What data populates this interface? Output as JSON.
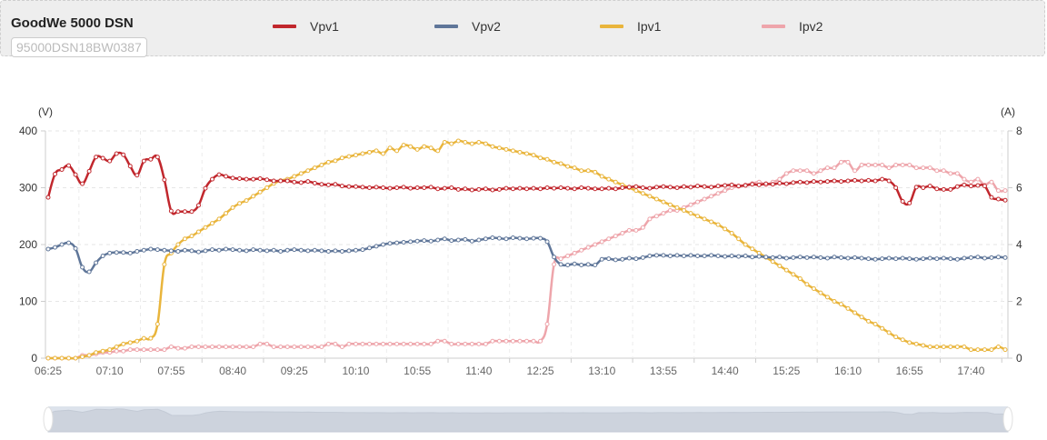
{
  "header": {
    "title": "GoodWe 5000 DSN",
    "serial": "95000DSN18BW0387"
  },
  "chart_data": {
    "type": "line",
    "title": "",
    "x_start": "06:25",
    "x_step_minutes": 5,
    "x_tick_labels": [
      "06:25",
      "07:10",
      "07:55",
      "08:40",
      "09:25",
      "10:10",
      "10:55",
      "11:40",
      "12:25",
      "13:10",
      "13:55",
      "14:40",
      "15:25",
      "16:10",
      "16:55",
      "17:40"
    ],
    "y_left": {
      "label": "(V)",
      "min": 0,
      "max": 400,
      "ticks": [
        "0",
        "100",
        "200",
        "300",
        "400"
      ]
    },
    "y_right": {
      "label": "(A)",
      "min": 0,
      "max": 8,
      "ticks": [
        "0",
        "2",
        "4",
        "6",
        "8"
      ]
    },
    "legend_position": "top",
    "series": [
      {
        "name": "Vpv1",
        "axis": "left",
        "color": "#c1272d",
        "values": [
          283,
          324,
          332,
          339,
          323,
          307,
          329,
          354,
          352,
          347,
          360,
          358,
          338,
          322,
          347,
          350,
          354,
          314,
          259,
          258,
          258,
          258,
          269,
          299,
          315,
          323,
          320,
          317,
          316,
          315,
          315,
          316,
          314,
          312,
          312,
          312,
          310,
          309,
          311,
          308,
          306,
          305,
          306,
          303,
          302,
          302,
          301,
          300,
          301,
          300,
          299,
          300,
          301,
          299,
          300,
          300,
          301,
          298,
          299,
          300,
          297,
          298,
          296,
          297,
          298,
          296,
          297,
          299,
          298,
          299,
          298,
          299,
          298,
          300,
          299,
          300,
          299,
          298,
          300,
          299,
          298,
          298,
          299,
          298,
          300,
          301,
          302,
          300,
          299,
          301,
          302,
          301,
          300,
          302,
          301,
          303,
          302,
          301,
          303,
          304,
          305,
          303,
          304,
          306,
          305,
          307,
          306,
          308,
          307,
          309,
          310,
          309,
          311,
          310,
          311,
          312,
          311,
          312,
          313,
          312,
          313,
          312,
          315,
          312,
          300,
          276,
          273,
          301,
          300,
          303,
          298,
          297,
          297,
          302,
          305,
          303,
          304,
          303,
          283,
          280,
          278
        ]
      },
      {
        "name": "Vpv2",
        "axis": "left",
        "color": "#5f7699",
        "values": [
          192,
          195,
          200,
          203,
          193,
          160,
          152,
          168,
          180,
          185,
          186,
          186,
          185,
          188,
          190,
          192,
          191,
          190,
          189,
          188,
          190,
          189,
          187,
          189,
          191,
          190,
          192,
          191,
          190,
          189,
          191,
          190,
          189,
          190,
          188,
          190,
          191,
          190,
          189,
          190,
          189,
          188,
          189,
          188,
          189,
          190,
          191,
          194,
          197,
          200,
          202,
          203,
          204,
          205,
          206,
          207,
          206,
          208,
          210,
          207,
          208,
          209,
          206,
          208,
          210,
          212,
          211,
          210,
          212,
          211,
          210,
          211,
          211,
          205,
          178,
          165,
          164,
          166,
          164,
          165,
          164,
          174,
          175,
          173,
          174,
          176,
          175,
          177,
          180,
          181,
          181,
          180,
          181,
          180,
          181,
          180,
          180,
          181,
          180,
          179,
          180,
          179,
          180,
          178,
          179,
          178,
          177,
          178,
          176,
          177,
          178,
          177,
          178,
          177,
          176,
          178,
          177,
          176,
          177,
          176,
          175,
          174,
          175,
          176,
          175,
          176,
          175,
          174,
          175,
          176,
          175,
          176,
          175,
          174,
          176,
          177,
          178,
          176,
          177,
          178,
          177
        ]
      },
      {
        "name": "Ipv1",
        "axis": "right",
        "color": "#e9b53c",
        "values": [
          0,
          0,
          0,
          0,
          0,
          0.05,
          0.1,
          0.2,
          0.25,
          0.3,
          0.4,
          0.5,
          0.55,
          0.6,
          0.7,
          0.7,
          1.2,
          3.3,
          3.7,
          4.0,
          4.2,
          4.3,
          4.45,
          4.6,
          4.75,
          4.9,
          5.1,
          5.3,
          5.45,
          5.55,
          5.7,
          5.85,
          6.0,
          6.15,
          6.25,
          6.3,
          6.4,
          6.5,
          6.6,
          6.7,
          6.8,
          6.9,
          6.95,
          7.05,
          7.1,
          7.15,
          7.2,
          7.25,
          7.3,
          7.2,
          7.4,
          7.3,
          7.5,
          7.45,
          7.35,
          7.45,
          7.4,
          7.3,
          7.6,
          7.55,
          7.65,
          7.6,
          7.55,
          7.6,
          7.55,
          7.45,
          7.4,
          7.35,
          7.3,
          7.25,
          7.2,
          7.15,
          7.05,
          7.0,
          6.9,
          6.85,
          6.75,
          6.7,
          6.6,
          6.6,
          6.55,
          6.4,
          6.3,
          6.2,
          6.1,
          6.0,
          5.9,
          5.8,
          5.7,
          5.6,
          5.5,
          5.4,
          5.3,
          5.2,
          5.1,
          5.0,
          4.9,
          4.8,
          4.7,
          4.55,
          4.4,
          4.2,
          4.0,
          3.85,
          3.7,
          3.55,
          3.4,
          3.25,
          3.1,
          2.95,
          2.8,
          2.6,
          2.45,
          2.3,
          2.15,
          2.0,
          1.9,
          1.75,
          1.6,
          1.45,
          1.3,
          1.2,
          1.05,
          0.9,
          0.75,
          0.65,
          0.55,
          0.5,
          0.45,
          0.4,
          0.4,
          0.4,
          0.4,
          0.4,
          0.4,
          0.3,
          0.3,
          0.3,
          0.3,
          0.4,
          0.3
        ]
      },
      {
        "name": "Ipv2",
        "axis": "right",
        "color": "#eea5ab",
        "values": [
          0,
          0,
          0,
          0,
          0,
          0.1,
          0.1,
          0.15,
          0.2,
          0.2,
          0.25,
          0.25,
          0.3,
          0.3,
          0.3,
          0.3,
          0.3,
          0.3,
          0.4,
          0.35,
          0.35,
          0.4,
          0.4,
          0.4,
          0.4,
          0.4,
          0.4,
          0.4,
          0.4,
          0.4,
          0.4,
          0.5,
          0.5,
          0.4,
          0.4,
          0.4,
          0.4,
          0.4,
          0.4,
          0.4,
          0.4,
          0.5,
          0.5,
          0.4,
          0.5,
          0.5,
          0.5,
          0.5,
          0.5,
          0.5,
          0.5,
          0.5,
          0.5,
          0.5,
          0.5,
          0.5,
          0.5,
          0.6,
          0.6,
          0.5,
          0.5,
          0.5,
          0.5,
          0.5,
          0.5,
          0.6,
          0.6,
          0.6,
          0.6,
          0.6,
          0.6,
          0.6,
          0.6,
          1.2,
          3.3,
          3.5,
          3.6,
          3.7,
          3.8,
          3.9,
          4.0,
          4.1,
          4.2,
          4.3,
          4.4,
          4.5,
          4.5,
          4.6,
          4.9,
          5.0,
          5.1,
          5.2,
          5.2,
          5.3,
          5.4,
          5.5,
          5.6,
          5.7,
          5.8,
          5.9,
          6.0,
          6.05,
          6.1,
          6.15,
          6.2,
          6.1,
          6.2,
          6.3,
          6.5,
          6.6,
          6.6,
          6.6,
          6.5,
          6.6,
          6.7,
          6.7,
          6.9,
          6.9,
          6.6,
          6.8,
          6.8,
          6.8,
          6.8,
          6.7,
          6.8,
          6.8,
          6.8,
          6.7,
          6.7,
          6.7,
          6.6,
          6.6,
          6.5,
          6.5,
          6.3,
          6.2,
          6.3,
          6.1,
          6.2,
          5.9,
          5.9
        ]
      }
    ]
  }
}
